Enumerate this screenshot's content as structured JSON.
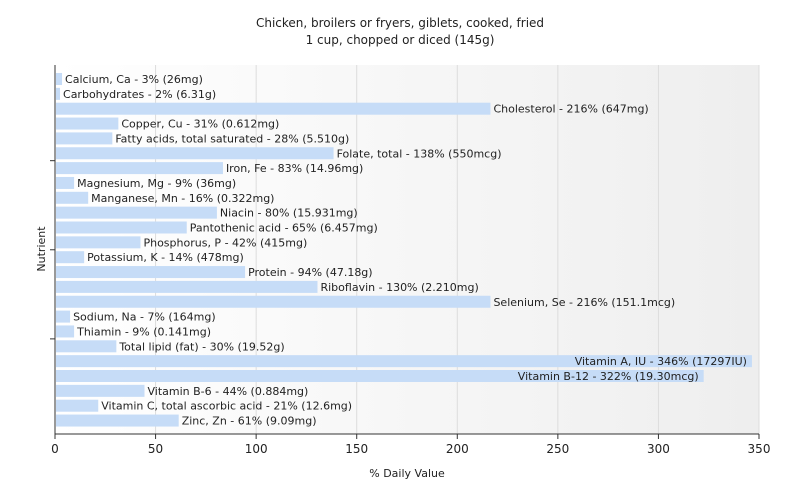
{
  "chart_data": {
    "type": "bar",
    "orientation": "horizontal",
    "title": "Chicken, broilers or fryers, giblets, cooked, fried",
    "subtitle": "1 cup, chopped or diced (145g)",
    "xlabel": "% Daily Value",
    "ylabel": "Nutrient",
    "xlim": [
      0,
      350
    ],
    "xticks": [
      0,
      50,
      100,
      150,
      200,
      250,
      300,
      350
    ],
    "grid": true,
    "bar_color": "#c6dcf7",
    "categories": [
      "Calcium, Ca",
      "Carbohydrates",
      "Cholesterol",
      "Copper, Cu",
      "Fatty acids, total saturated",
      "Folate, total",
      "Iron, Fe",
      "Magnesium, Mg",
      "Manganese, Mn",
      "Niacin",
      "Pantothenic acid",
      "Phosphorus, P",
      "Potassium, K",
      "Protein",
      "Riboflavin",
      "Selenium, Se",
      "Sodium, Na",
      "Thiamin",
      "Total lipid (fat)",
      "Vitamin A, IU",
      "Vitamin B-12",
      "Vitamin B-6",
      "Vitamin C, total ascorbic acid",
      "Zinc, Zn"
    ],
    "values": [
      3,
      2,
      216,
      31,
      28,
      138,
      83,
      9,
      16,
      80,
      65,
      42,
      14,
      94,
      130,
      216,
      7,
      9,
      30,
      346,
      322,
      44,
      21,
      61
    ],
    "labels": [
      "Calcium, Ca - 3% (26mg)",
      "Carbohydrates - 2% (6.31g)",
      "Cholesterol - 216% (647mg)",
      "Copper, Cu - 31% (0.612mg)",
      "Fatty acids, total saturated - 28% (5.510g)",
      "Folate, total - 138% (550mcg)",
      "Iron, Fe - 83% (14.96mg)",
      "Magnesium, Mg - 9% (36mg)",
      "Manganese, Mn - 16% (0.322mg)",
      "Niacin - 80% (15.931mg)",
      "Pantothenic acid - 65% (6.457mg)",
      "Phosphorus, P - 42% (415mg)",
      "Potassium, K - 14% (478mg)",
      "Protein - 94% (47.18g)",
      "Riboflavin - 130% (2.210mg)",
      "Selenium, Se - 216% (151.1mcg)",
      "Sodium, Na - 7% (164mg)",
      "Thiamin - 9% (0.141mg)",
      "Total lipid (fat) - 30% (19.52g)",
      "Vitamin A, IU - 346% (17297IU)",
      "Vitamin B-12 - 322% (19.30mcg)",
      "Vitamin B-6 - 44% (0.884mg)",
      "Vitamin C, total ascorbic acid - 21% (12.6mg)",
      "Zinc, Zn - 61% (9.09mg)"
    ]
  }
}
